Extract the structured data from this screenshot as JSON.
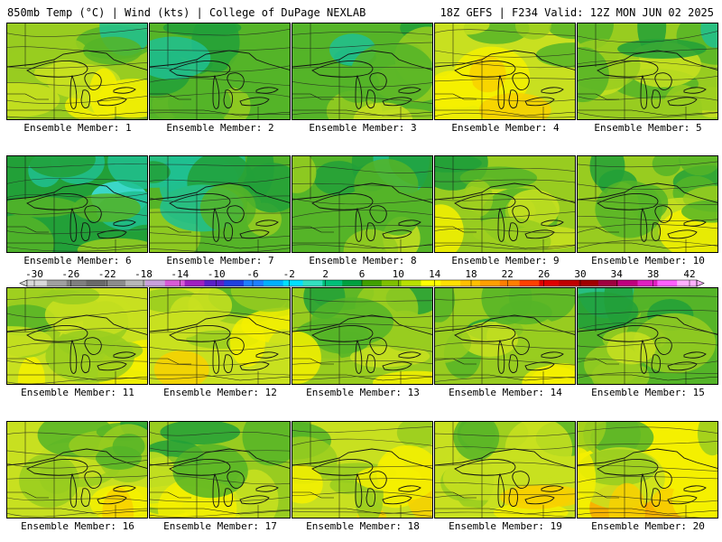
{
  "header": {
    "left": "850mb Temp (°C) | Wind (kts) | College of DuPage NEXLAB",
    "right": "18Z GEFS | F234 Valid: 12Z MON JUN 02 2025"
  },
  "members": [
    {
      "label": "Ensemble Member: 1",
      "level": 0.45
    },
    {
      "label": "Ensemble Member: 2",
      "level": 0.3
    },
    {
      "label": "Ensemble Member: 3",
      "level": 0.34
    },
    {
      "label": "Ensemble Member: 4",
      "level": 0.58
    },
    {
      "label": "Ensemble Member: 5",
      "level": 0.4
    },
    {
      "label": "Ensemble Member: 6",
      "level": 0.22
    },
    {
      "label": "Ensemble Member: 7",
      "level": 0.28
    },
    {
      "label": "Ensemble Member: 8",
      "level": 0.38
    },
    {
      "label": "Ensemble Member: 9",
      "level": 0.46
    },
    {
      "label": "Ensemble Member: 10",
      "level": 0.42
    },
    {
      "label": "Ensemble Member: 11",
      "level": 0.52
    },
    {
      "label": "Ensemble Member: 12",
      "level": 0.55
    },
    {
      "label": "Ensemble Member: 13",
      "level": 0.44
    },
    {
      "label": "Ensemble Member: 14",
      "level": 0.4
    },
    {
      "label": "Ensemble Member: 15",
      "level": 0.33
    },
    {
      "label": "Ensemble Member: 16",
      "level": 0.5
    },
    {
      "label": "Ensemble Member: 17",
      "level": 0.46
    },
    {
      "label": "Ensemble Member: 18",
      "level": 0.52
    },
    {
      "label": "Ensemble Member: 19",
      "level": 0.56
    },
    {
      "label": "Ensemble Member: 20",
      "level": 0.62
    }
  ],
  "colorbar": {
    "labels": [
      "-30",
      "-26",
      "-22",
      "-18",
      "-14",
      "-10",
      "-6",
      "-2",
      "2",
      "6",
      "10",
      "14",
      "18",
      "22",
      "26",
      "30",
      "34",
      "38",
      "42"
    ],
    "colors": [
      "#d9d9d9",
      "#a0a0a0",
      "#7f7f7f",
      "#6a6a6a",
      "#8c8c8c",
      "#b7b7b7",
      "#c9a0dc",
      "#d85bd8",
      "#a020c0",
      "#5a20c8",
      "#2040e0",
      "#1f7fff",
      "#00b0ff",
      "#00e0ff",
      "#33e0c0",
      "#00c07a",
      "#00a040",
      "#40a000",
      "#7fc000",
      "#b9e000",
      "#ffff00",
      "#ffe000",
      "#ffc000",
      "#ff9f00",
      "#ff7f00",
      "#ff4000",
      "#e00000",
      "#c00000",
      "#a00000",
      "#a00040",
      "#c0007f",
      "#e020c0",
      "#ff60ff",
      "#ffb0ff"
    ],
    "palette": {
      "cyan": "#40e0e0",
      "teal": "#20c090",
      "dark_green": "#22a038",
      "green": "#55b428",
      "light_green": "#98cc20",
      "yellow_green": "#c8e020",
      "yellow": "#f4f000",
      "gold": "#f8d000",
      "orange": "#f8a800",
      "red_orange": "#f07000"
    }
  }
}
